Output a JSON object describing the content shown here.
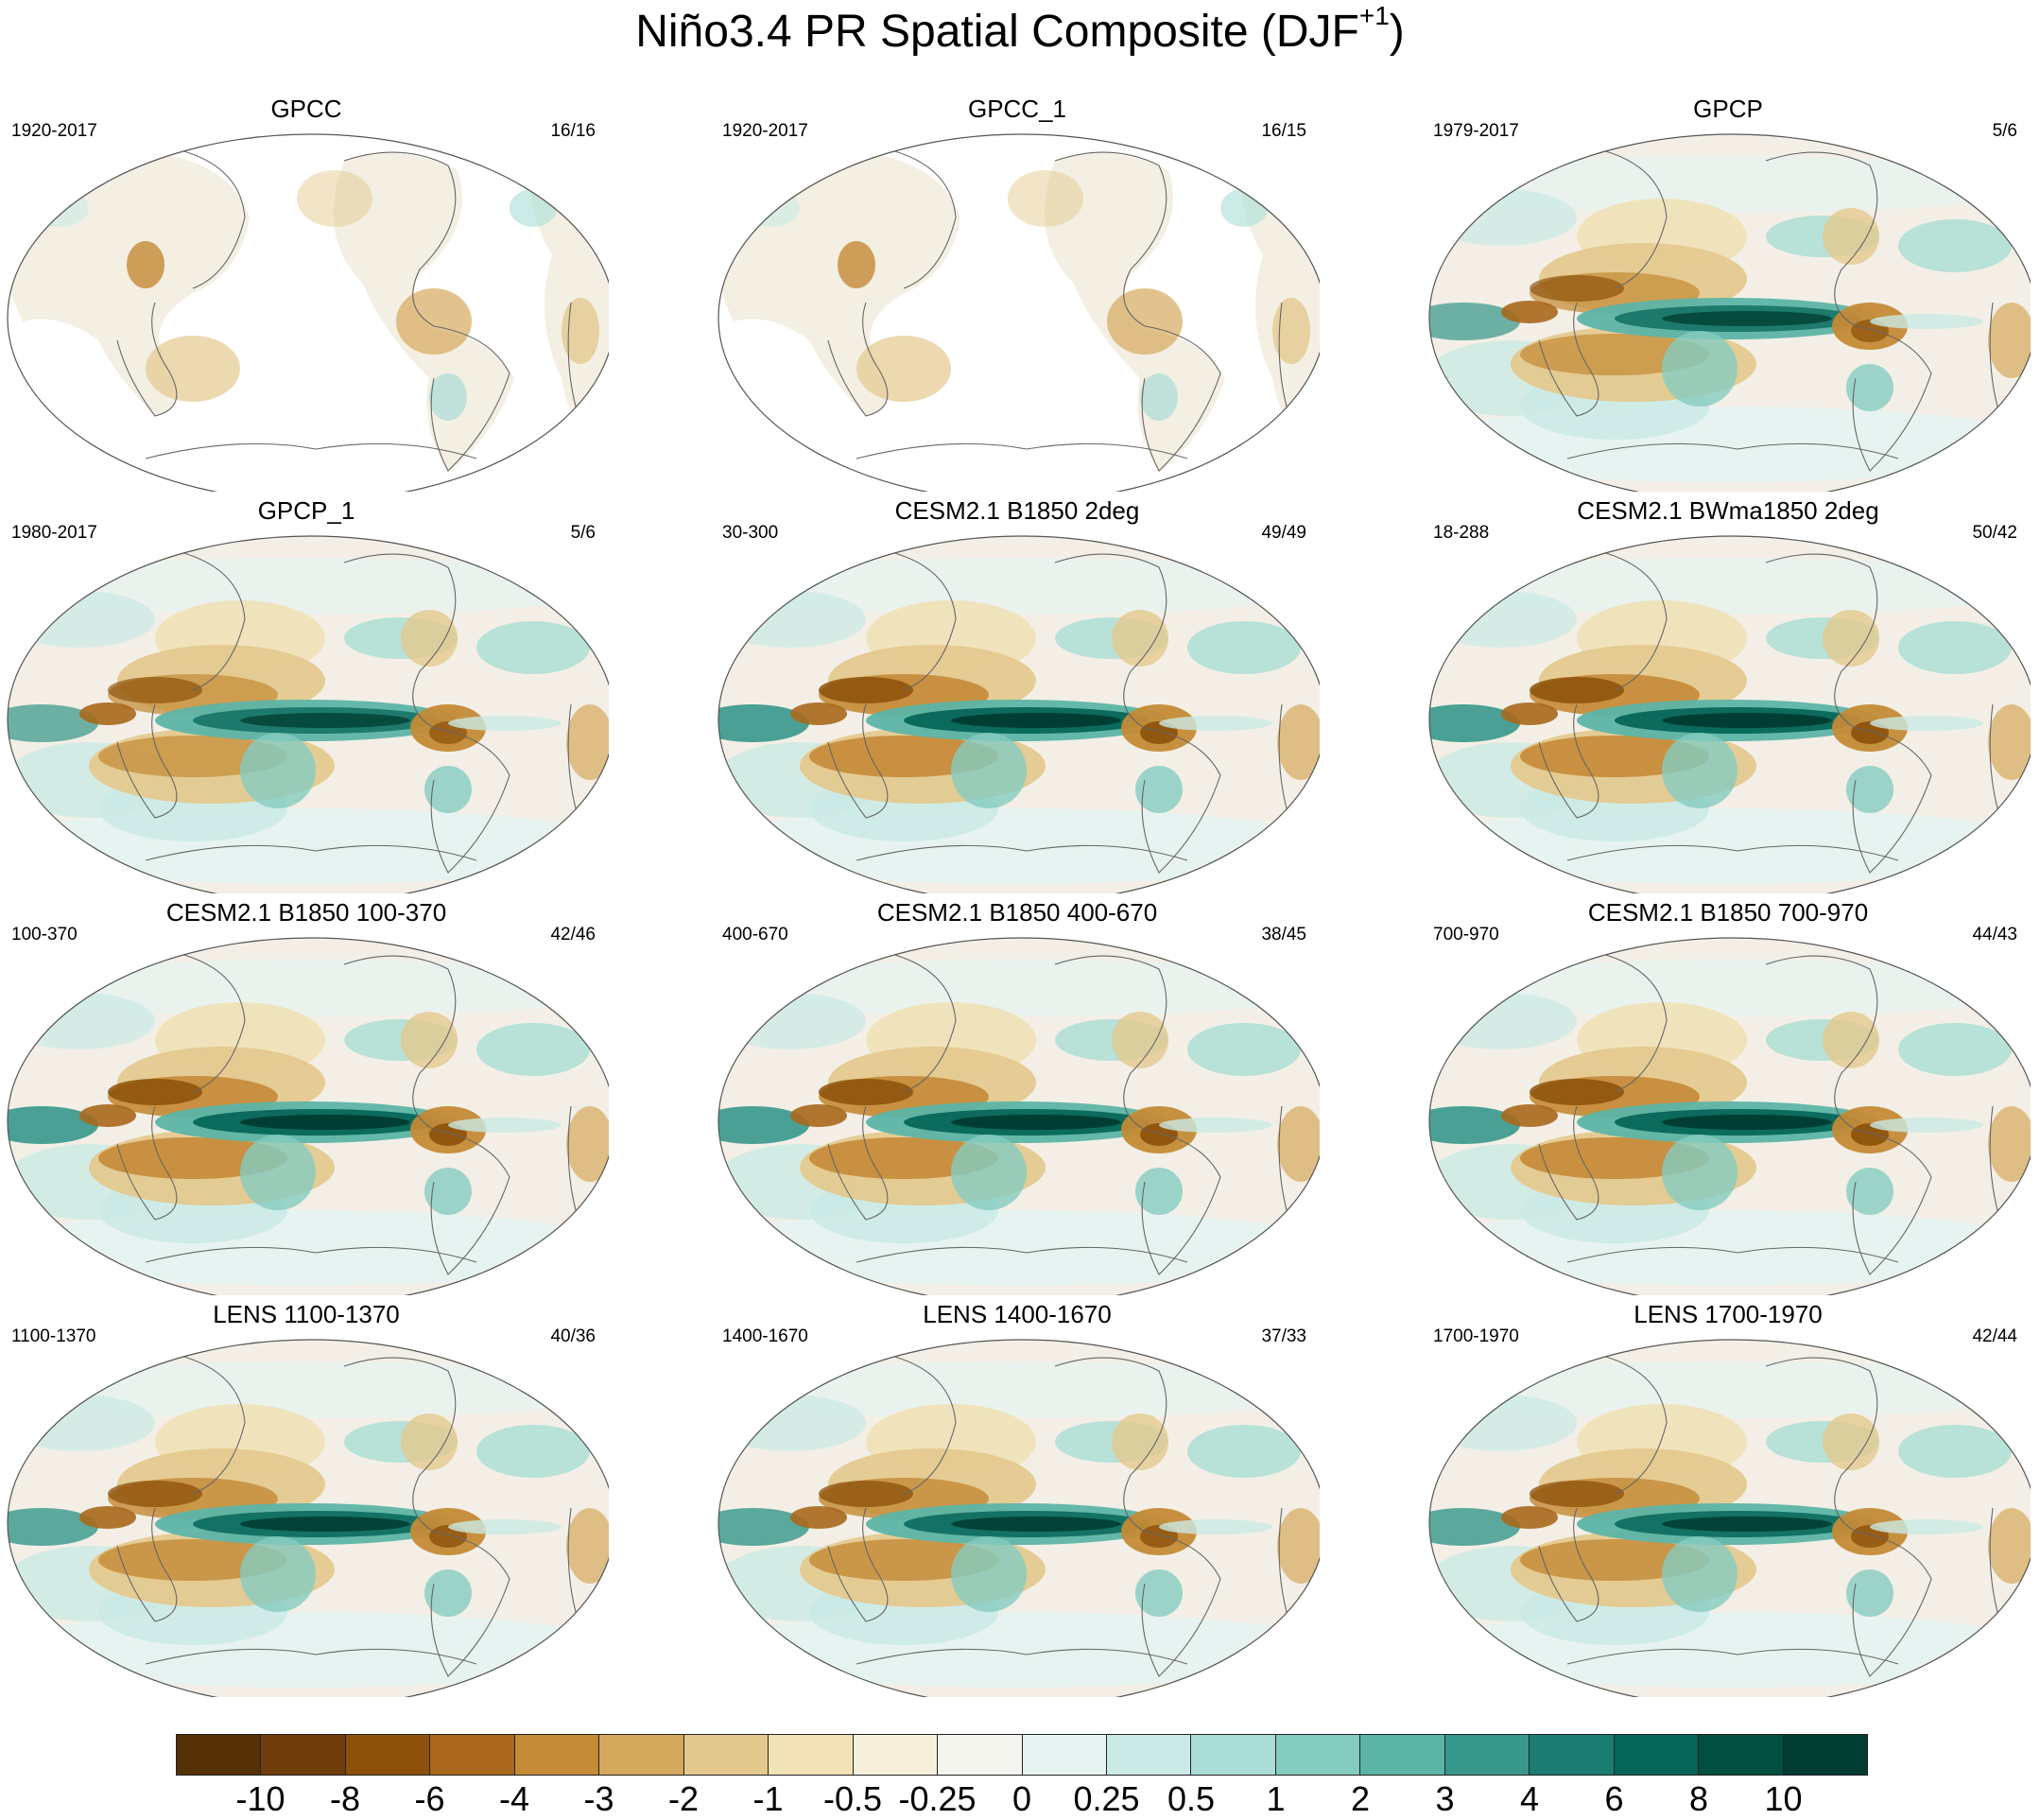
{
  "title": {
    "main": "Niño3.4 PR Spatial Composite (DJF",
    "superscript": "+1",
    "close": ")"
  },
  "panels": [
    {
      "name": "GPCC",
      "years": "1920-2017",
      "count": "16/16",
      "style": "land",
      "strength": 0.5
    },
    {
      "name": "GPCC_1",
      "years": "1920-2017",
      "count": "16/15",
      "style": "land",
      "strength": 0.5
    },
    {
      "name": "GPCP",
      "years": "1979-2017",
      "count": "5/6",
      "style": "obs",
      "strength": 0.8
    },
    {
      "name": "GPCP_1",
      "years": "1980-2017",
      "count": "5/6",
      "style": "obs",
      "strength": 0.8
    },
    {
      "name": "CESM2.1 B1850 2deg",
      "years": "30-300",
      "count": "49/49",
      "style": "model",
      "strength": 1.0
    },
    {
      "name": "CESM2.1 BWma1850 2deg",
      "years": "18-288",
      "count": "50/42",
      "style": "model",
      "strength": 1.0
    },
    {
      "name": "CESM2.1 B1850 100-370",
      "years": "100-370",
      "count": "42/46",
      "style": "model",
      "strength": 1.0
    },
    {
      "name": "CESM2.1 B1850 400-670",
      "years": "400-670",
      "count": "38/45",
      "style": "model",
      "strength": 1.0
    },
    {
      "name": "CESM2.1 B1850 700-970",
      "years": "700-970",
      "count": "44/43",
      "style": "model",
      "strength": 1.0
    },
    {
      "name": "LENS 1100-1370",
      "years": "1100-1370",
      "count": "40/36",
      "style": "lens",
      "strength": 0.9
    },
    {
      "name": "LENS 1400-1670",
      "years": "1400-1670",
      "count": "37/33",
      "style": "lens",
      "strength": 0.9
    },
    {
      "name": "LENS 1700-1970",
      "years": "1700-1970",
      "count": "42/44",
      "style": "lens",
      "strength": 0.9
    }
  ],
  "colorbar": {
    "colors": [
      "#543005",
      "#6f3d0a",
      "#8c510a",
      "#a9681c",
      "#c48a36",
      "#d5a95d",
      "#e4c98f",
      "#f0e1b6",
      "#f5efdc",
      "#f5f5f0",
      "#e6f3f1",
      "#cbeae5",
      "#a9ddd5",
      "#84ccc0",
      "#5cb4a7",
      "#37978b",
      "#1b7d71",
      "#066659",
      "#01503f",
      "#003c30"
    ],
    "labels": [
      "-10",
      "-8",
      "-6",
      "-4",
      "-3",
      "-2",
      "-1",
      "-0.5",
      "-0.25",
      "0",
      "0.25",
      "0.5",
      "1",
      "2",
      "3",
      "4",
      "6",
      "8",
      "10"
    ]
  }
}
